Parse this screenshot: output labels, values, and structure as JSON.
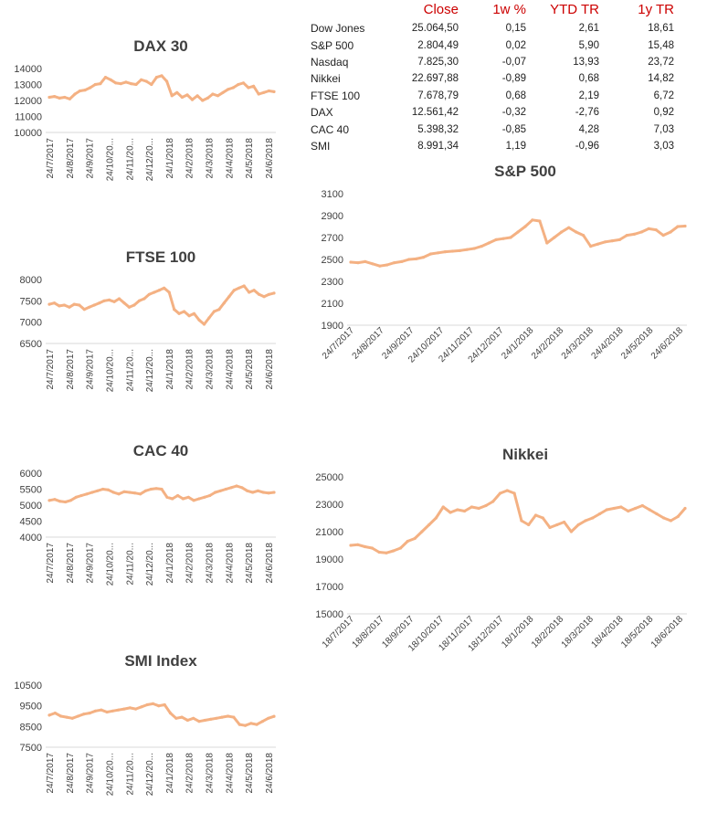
{
  "table": {
    "headers": [
      "",
      "Close",
      "1w %",
      "YTD TR",
      "1y TR"
    ],
    "rows": [
      [
        "Dow Jones",
        "25.064,50",
        "0,15",
        "2,61",
        "18,61"
      ],
      [
        "S&P 500",
        "2.804,49",
        "0,02",
        "5,90",
        "15,48"
      ],
      [
        "Nasdaq",
        "7.825,30",
        "-0,07",
        "13,93",
        "23,72"
      ],
      [
        "Nikkei",
        "22.697,88",
        "-0,89",
        "0,68",
        "14,82"
      ],
      [
        "FTSE 100",
        "7.678,79",
        "0,68",
        "2,19",
        "6,72"
      ],
      [
        "DAX",
        "12.561,42",
        "-0,32",
        "-2,76",
        "0,92"
      ],
      [
        "CAC 40",
        "5.398,32",
        "-0,85",
        "4,28",
        "7,03"
      ],
      [
        "SMI",
        "8.991,34",
        "1,19",
        "-0,96",
        "3,03"
      ]
    ],
    "header_color": "#cc0000"
  },
  "line_color": "#f4b183",
  "chart_data": [
    {
      "id": "dax",
      "type": "line",
      "title": "DAX 30",
      "ylim": [
        10000,
        14000
      ],
      "yticks": [
        "10000",
        "11000",
        "12000",
        "13000",
        "14000"
      ],
      "xticks": [
        "24/7/2017",
        "24/8/2017",
        "24/9/2017",
        "24/10/20...",
        "24/11/20...",
        "24/12/20...",
        "24/1/2018",
        "24/2/2018",
        "24/3/2018",
        "24/4/2018",
        "24/5/2018",
        "24/6/2018"
      ],
      "values": [
        12200,
        12250,
        12150,
        12200,
        12100,
        12400,
        12600,
        12650,
        12800,
        13000,
        13050,
        13450,
        13300,
        13100,
        13050,
        13150,
        13050,
        13000,
        13300,
        13200,
        13000,
        13450,
        13550,
        13200,
        12300,
        12500,
        12200,
        12350,
        12050,
        12300,
        12000,
        12150,
        12400,
        12300,
        12500,
        12700,
        12800,
        13000,
        13100,
        12800,
        12900,
        12400,
        12500,
        12600,
        12550
      ]
    },
    {
      "id": "ftse",
      "type": "line",
      "title": "FTSE 100",
      "ylim": [
        6500,
        8000
      ],
      "yticks": [
        "6500",
        "7000",
        "7500",
        "8000"
      ],
      "xticks": [
        "24/7/2017",
        "24/8/2017",
        "24/9/2017",
        "24/10/20...",
        "24/11/20...",
        "24/12/20...",
        "24/1/2018",
        "24/2/2018",
        "24/3/2018",
        "24/4/2018",
        "24/5/2018",
        "24/6/2018"
      ],
      "values": [
        7420,
        7450,
        7380,
        7400,
        7350,
        7420,
        7400,
        7300,
        7350,
        7400,
        7450,
        7500,
        7520,
        7480,
        7550,
        7450,
        7350,
        7400,
        7500,
        7550,
        7650,
        7700,
        7750,
        7800,
        7700,
        7300,
        7200,
        7250,
        7150,
        7200,
        7050,
        6950,
        7100,
        7250,
        7300,
        7450,
        7600,
        7750,
        7800,
        7850,
        7700,
        7750,
        7650,
        7600,
        7650,
        7680
      ]
    },
    {
      "id": "cac",
      "type": "line",
      "title": "CAC 40",
      "ylim": [
        4000,
        6000
      ],
      "yticks": [
        "4000",
        "4500",
        "5000",
        "5500",
        "6000"
      ],
      "xticks": [
        "24/7/2017",
        "24/8/2017",
        "24/9/2017",
        "24/10/20...",
        "24/11/20...",
        "24/12/20...",
        "24/1/2018",
        "24/2/2018",
        "24/3/2018",
        "24/4/2018",
        "24/5/2018",
        "24/6/2018"
      ],
      "values": [
        5150,
        5180,
        5120,
        5100,
        5150,
        5250,
        5300,
        5350,
        5400,
        5450,
        5500,
        5480,
        5400,
        5350,
        5420,
        5400,
        5380,
        5350,
        5450,
        5500,
        5520,
        5500,
        5250,
        5200,
        5300,
        5200,
        5250,
        5150,
        5200,
        5250,
        5300,
        5400,
        5450,
        5500,
        5550,
        5600,
        5550,
        5450,
        5400,
        5450,
        5400,
        5380,
        5400
      ]
    },
    {
      "id": "smi",
      "type": "line",
      "title": "SMI Index",
      "ylim": [
        7500,
        10500
      ],
      "yticks": [
        "7500",
        "8500",
        "9500",
        "10500"
      ],
      "xticks": [
        "24/7/2017",
        "24/8/2017",
        "24/9/2017",
        "24/10/20...",
        "24/11/20...",
        "24/12/20...",
        "24/1/2018",
        "24/2/2018",
        "24/3/2018",
        "24/4/2018",
        "24/5/2018",
        "24/6/2018"
      ],
      "values": [
        9050,
        9150,
        9000,
        8950,
        8900,
        9000,
        9100,
        9150,
        9250,
        9300,
        9200,
        9250,
        9300,
        9350,
        9400,
        9350,
        9450,
        9550,
        9600,
        9500,
        9550,
        9150,
        8900,
        8950,
        8800,
        8900,
        8750,
        8800,
        8850,
        8900,
        8950,
        9000,
        8950,
        8600,
        8550,
        8650,
        8600,
        8750,
        8900,
        8990
      ]
    },
    {
      "id": "sp",
      "type": "line",
      "title": "S&P 500",
      "ylim": [
        1900,
        3100
      ],
      "yticks": [
        "1900",
        "2100",
        "2300",
        "2500",
        "2700",
        "2900",
        "3100"
      ],
      "xticks": [
        "24/7/2017",
        "24/8/2017",
        "24/9/2017",
        "24/10/2017",
        "24/11/2017",
        "24/12/2017",
        "24/1/2018",
        "24/2/2018",
        "24/3/2018",
        "24/4/2018",
        "24/5/2018",
        "24/6/2018"
      ],
      "values": [
        2475,
        2470,
        2480,
        2460,
        2440,
        2450,
        2470,
        2480,
        2500,
        2505,
        2520,
        2550,
        2560,
        2570,
        2575,
        2580,
        2590,
        2600,
        2620,
        2650,
        2680,
        2690,
        2700,
        2750,
        2800,
        2860,
        2850,
        2650,
        2700,
        2750,
        2790,
        2750,
        2720,
        2620,
        2640,
        2660,
        2670,
        2680,
        2720,
        2730,
        2750,
        2780,
        2770,
        2720,
        2750,
        2800,
        2804
      ]
    },
    {
      "id": "nikkei",
      "type": "line",
      "title": "Nikkei",
      "ylim": [
        15000,
        25000
      ],
      "yticks": [
        "15000",
        "17000",
        "19000",
        "21000",
        "23000",
        "25000"
      ],
      "xticks": [
        "18/7/2017",
        "18/8/2017",
        "18/9/2017",
        "18/10/2017",
        "18/11/2017",
        "18/12/2017",
        "18/1/2018",
        "18/2/2018",
        "18/3/2018",
        "18/4/2018",
        "18/5/2018",
        "18/6/2018"
      ],
      "values": [
        20000,
        20050,
        19900,
        19800,
        19500,
        19450,
        19600,
        19800,
        20300,
        20500,
        21000,
        21500,
        22000,
        22800,
        22400,
        22600,
        22500,
        22800,
        22700,
        22900,
        23200,
        23800,
        24000,
        23800,
        21800,
        21500,
        22200,
        22000,
        21300,
        21500,
        21700,
        21000,
        21500,
        21800,
        22000,
        22300,
        22600,
        22700,
        22800,
        22500,
        22700,
        22900,
        22600,
        22300,
        22000,
        21800,
        22100,
        22697
      ]
    }
  ]
}
